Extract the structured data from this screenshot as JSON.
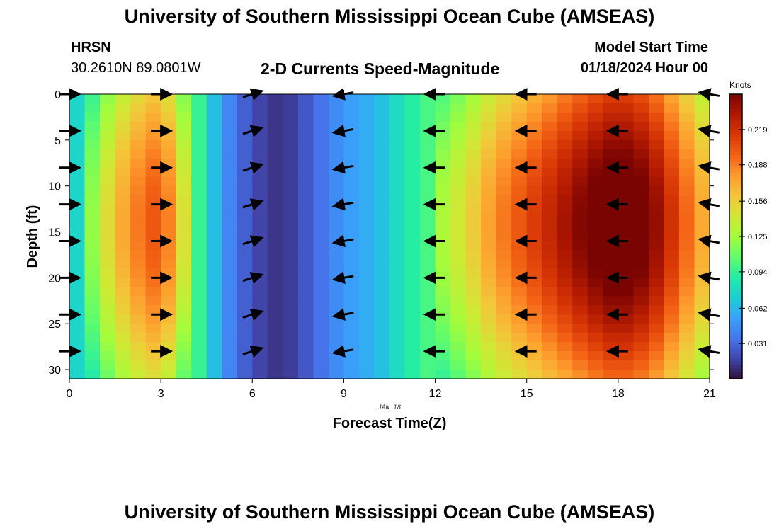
{
  "title": "University of Southern Mississippi Ocean Cube (AMSEAS)",
  "station": {
    "name": "HRSN",
    "coords": "30.2610N  89.0801W"
  },
  "subtitle": "2-D Currents Speed-Magnitude",
  "model": {
    "label": "Model Start Time",
    "value": "01/18/2024 Hour 00"
  },
  "footer_title": "University of Southern Mississippi Ocean Cube (AMSEAS)",
  "colors": {
    "colormap": [
      "#30123b",
      "#4145ab",
      "#4675ed",
      "#39a2fc",
      "#1bcfd4",
      "#24eca6",
      "#61fc6c",
      "#a4fc3b",
      "#d1e834",
      "#f3c63a",
      "#fe9b2d",
      "#f36315",
      "#d93806",
      "#b11901",
      "#7a0402"
    ],
    "arrow": "#000000"
  },
  "chart_data": {
    "type": "heatmap",
    "xlabel": "Forecast Time(Z)",
    "ylabel": "Depth (ft)",
    "date_label": "JAN 18",
    "colorbar_label": "Knots",
    "xlim": [
      0,
      21
    ],
    "ylim": [
      0,
      31
    ],
    "x_ticks": [
      0,
      3,
      6,
      9,
      12,
      15,
      18,
      21
    ],
    "y_ticks": [
      0,
      5,
      10,
      15,
      20,
      25,
      30
    ],
    "colorbar_range": [
      0,
      0.25
    ],
    "colorbar_ticks": [
      "0.031",
      "0.062",
      "0.094",
      "0.125",
      "0.156",
      "0.188",
      "0.219"
    ],
    "speed_profile_hours": [
      0,
      1,
      2,
      3,
      4,
      5,
      6,
      7,
      8,
      9,
      10,
      11,
      12,
      13,
      14,
      15,
      16,
      17,
      18,
      19,
      20,
      21
    ],
    "speed_profile_knots": [
      0.06,
      0.12,
      0.16,
      0.18,
      0.11,
      0.05,
      0.02,
      0.01,
      0.03,
      0.05,
      0.06,
      0.085,
      0.105,
      0.13,
      0.16,
      0.18,
      0.2,
      0.22,
      0.235,
      0.22,
      0.18,
      0.14
    ],
    "arrow_times": [
      0,
      3,
      6,
      9,
      12,
      15,
      18,
      21
    ],
    "arrow_depths": [
      0,
      4,
      8,
      12,
      16,
      20,
      24,
      28
    ],
    "arrow_directions_deg": [
      0,
      0,
      18,
      190,
      180,
      180,
      180,
      170
    ]
  }
}
